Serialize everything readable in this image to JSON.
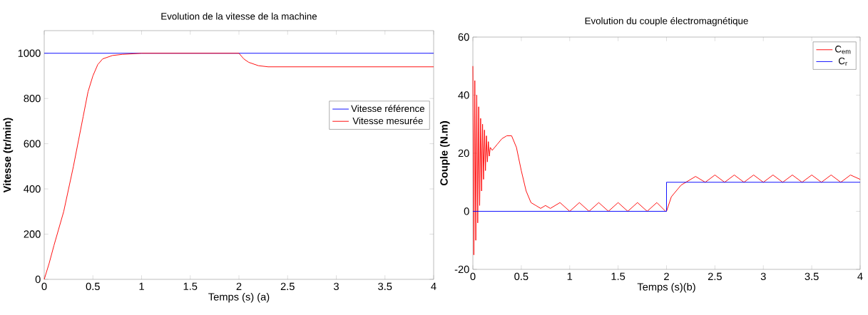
{
  "chart_data": [
    {
      "type": "line",
      "title": "Evolution de la vitesse de la machine",
      "xlabel": "Temps (s) (a)",
      "ylabel": "Vitesse (tr/min)",
      "xlim": [
        0,
        4
      ],
      "ylim": [
        0,
        1100
      ],
      "xticks": [
        0,
        0.5,
        1,
        1.5,
        2,
        2.5,
        3,
        3.5,
        4
      ],
      "yticks": [
        0,
        200,
        400,
        600,
        800,
        1000
      ],
      "legend": "right",
      "marker": "none",
      "line_style": "solid",
      "series": [
        {
          "name": "Vitesse référence",
          "color": "#0000ff",
          "x": [
            0,
            4
          ],
          "values": [
            1000,
            1000
          ]
        },
        {
          "name": "Vitesse mesurée",
          "color": "#ff0000",
          "x": [
            0,
            0.05,
            0.1,
            0.2,
            0.3,
            0.4,
            0.45,
            0.5,
            0.55,
            0.6,
            0.7,
            0.8,
            1,
            2,
            2.05,
            2.1,
            2.2,
            2.3,
            4
          ],
          "values": [
            0,
            70,
            150,
            300,
            500,
            720,
            830,
            900,
            950,
            975,
            990,
            995,
            1000,
            1000,
            975,
            960,
            945,
            940,
            940
          ]
        }
      ]
    },
    {
      "type": "line",
      "title": "Evolution du couple électromagnétique",
      "xlabel": "Temps (s)(b)",
      "ylabel": "Couple (N.m)",
      "xlim": [
        0,
        4
      ],
      "ylim": [
        -20,
        60
      ],
      "xticks": [
        0,
        0.5,
        1,
        1.5,
        2,
        2.5,
        3,
        3.5,
        4
      ],
      "yticks": [
        -20,
        0,
        20,
        40,
        60
      ],
      "legend": "top right",
      "marker": "none",
      "line_style": "solid",
      "series": [
        {
          "name": "C$_{em}$",
          "color": "#ff0000",
          "x": [
            0,
            0.01,
            0.02,
            0.03,
            0.04,
            0.05,
            0.06,
            0.07,
            0.08,
            0.09,
            0.1,
            0.11,
            0.12,
            0.13,
            0.14,
            0.15,
            0.16,
            0.17,
            0.18,
            0.2,
            0.25,
            0.3,
            0.35,
            0.4,
            0.45,
            0.5,
            0.55,
            0.6,
            0.65,
            0.7,
            0.75,
            0.8,
            0.9,
            1.0,
            1.1,
            1.2,
            1.3,
            1.4,
            1.5,
            1.6,
            1.7,
            1.8,
            1.9,
            1.99,
            2.0,
            2.05,
            2.1,
            2.15,
            2.2,
            2.3,
            2.4,
            2.5,
            2.6,
            2.7,
            2.8,
            2.9,
            3.0,
            3.1,
            3.2,
            3.3,
            3.4,
            3.5,
            3.6,
            3.7,
            3.8,
            3.9,
            4.0
          ],
          "values": [
            50,
            -15,
            45,
            -10,
            40,
            -4,
            36,
            2,
            32,
            7,
            30,
            11,
            28,
            14,
            26,
            17,
            24,
            19,
            22,
            21,
            23,
            25,
            26,
            26,
            22,
            14,
            7,
            3,
            2,
            1,
            2,
            1,
            3,
            0,
            3,
            0,
            3,
            0,
            3,
            0,
            3,
            0,
            3,
            0,
            0,
            5,
            7,
            9,
            10,
            12,
            10,
            12.5,
            10,
            12.5,
            10,
            12.5,
            10,
            12.5,
            10,
            12.5,
            10,
            12.5,
            10,
            12.5,
            10,
            12.5,
            11
          ]
        },
        {
          "name": "C$_{r}$",
          "color": "#0000ff",
          "x": [
            0,
            2,
            2,
            4
          ],
          "values": [
            0,
            0,
            10,
            10
          ]
        }
      ]
    }
  ]
}
